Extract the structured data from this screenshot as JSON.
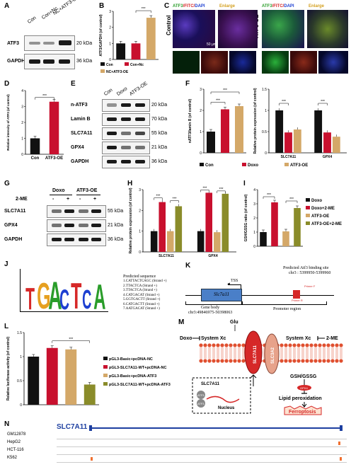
{
  "panels": {
    "A": {
      "label": "A",
      "lanes": [
        "Con",
        "Con+Nc",
        "NC+ATF3-OE"
      ],
      "rows": [
        {
          "name": "ATF3",
          "kda": "20 kDa"
        },
        {
          "name": "GAPDH",
          "kda": "36 kDa"
        }
      ]
    },
    "B": {
      "label": "B"
    },
    "C": {
      "label": "C",
      "row_labels": [
        "Control",
        "ATF3-OE"
      ],
      "col_headers": [
        {
          "a": "ATF3",
          "b": "/FITC/",
          "c": "DAPI"
        },
        {
          "e": "Enlarge"
        },
        {
          "a": "ATF3",
          "b": "/FITC/",
          "c": "DAPI"
        },
        {
          "e": "Enlarge"
        }
      ],
      "scale": "50 μm"
    },
    "D": {
      "label": "D"
    },
    "E": {
      "label": "E",
      "lanes": [
        "Con",
        "Doxo",
        "ATF3-OE"
      ],
      "rows": [
        {
          "name": "n-ATF3",
          "kda": "20 kDa"
        },
        {
          "name": "Lamin B",
          "kda": "70 kDa"
        },
        {
          "name": "SLC7A11",
          "kda": "55 kDa"
        },
        {
          "name": "GPX4",
          "kda": "21 kDa"
        },
        {
          "name": "GAPDH",
          "kda": "36 kDa"
        }
      ]
    },
    "F": {
      "label": "F"
    },
    "G": {
      "label": "G",
      "groups": [
        "Doxo",
        "ATF3-OE"
      ],
      "treat_label": "2-ME",
      "signs": [
        "-",
        "+",
        "-",
        "+"
      ],
      "rows": [
        {
          "name": "SLC7A11",
          "kda": "55 kDa"
        },
        {
          "name": "GPX4",
          "kda": "21 kDa"
        },
        {
          "name": "GAPDH",
          "kda": "36 kDa"
        }
      ]
    },
    "H": {
      "label": "H"
    },
    "I": {
      "label": "I"
    },
    "J": {
      "label": "J",
      "logo": "TGACTCA",
      "pred_title": "Predicted sequence",
      "sequences": [
        "1.CATTACTCAGC (Strand +)",
        "2.TTACTCA (Strand +)",
        "3.TTACTCA (Strand +)",
        "4.CATGACAT (Strand +)",
        "5.GGTGACTT (Strand +)",
        "6.CATGACTT (Strand +)",
        "7.AATGACAT (Strand +)"
      ]
    },
    "K": {
      "label": "K",
      "gene": "Slc7a11",
      "tss": "TSS",
      "site_title": "Predicted Atf3 binding site",
      "site_coords": "chr3 : 5399950-5399960",
      "primer_f": "Primer F",
      "primer_r": "Primer R",
      "body_label": "Gene body",
      "body_coords": "chr3:49846975-50398063",
      "promoter": "Promoter  region"
    },
    "L": {
      "label": "L"
    },
    "M": {
      "label": "M",
      "glu": "Glu",
      "doxo": "Doxo",
      "me": "2-ME",
      "sysxc": "System Xc",
      "slc3a2": "SLC3A2",
      "slc7a11": "SLC7A11",
      "gsh": "GSH/GSSG",
      "gpx4": "GPX4",
      "lipid": "Lipid peroxidation",
      "ferro": "Ferroptosis",
      "nucleus": "Nucleus",
      "atf3": "ATF3",
      "gene": "SLC7A11"
    },
    "N": {
      "label": "N",
      "gene": "SLC7A11",
      "tracks": [
        "GM12878",
        "HepG2",
        "HCT-116",
        "K562"
      ]
    }
  },
  "chart_data": [
    {
      "type": "bar",
      "id": "B",
      "ylabel": "ATF3/GAPDH (of control)",
      "ylim": [
        0,
        3
      ],
      "yticks": [
        0,
        1,
        2,
        3
      ],
      "categories": [
        "Con",
        "Con+Nc",
        "NC+ATF3-OE"
      ],
      "values": [
        1.0,
        1.0,
        2.6
      ],
      "colors": [
        "#111111",
        "#c8102e",
        "#d4a868"
      ],
      "sig": "***",
      "legend": [
        "Con",
        "Con+Nc",
        "NC+ATF3-OE"
      ]
    },
    {
      "type": "bar",
      "id": "D",
      "ylabel": "Relative intensity of ATF3 (of control)",
      "ylim": [
        0,
        4
      ],
      "yticks": [
        0,
        1,
        2,
        3,
        4
      ],
      "categories": [
        "Con",
        "ATF3-OE"
      ],
      "values": [
        1.0,
        3.3
      ],
      "colors": [
        "#111111",
        "#c8102e"
      ],
      "sig": "***"
    },
    {
      "type": "bar",
      "id": "F1",
      "ylabel": "nATF3/lamin B (of control)",
      "ylim": [
        0,
        3
      ],
      "yticks": [
        0,
        1,
        2,
        3
      ],
      "categories": [
        "Con",
        "Doxo",
        "ATF3-OE"
      ],
      "values": [
        1.0,
        2.05,
        2.2
      ],
      "colors": [
        "#111111",
        "#c8102e",
        "#d4a868"
      ],
      "sig": [
        "***",
        "***"
      ]
    },
    {
      "type": "bar",
      "id": "F2",
      "ylabel": "Relative protein expression (of control)",
      "ylim": [
        0,
        1.5
      ],
      "yticks": [
        0,
        0.5,
        1.0,
        1.5
      ],
      "categories": [
        "SLC7A11",
        "GPX4"
      ],
      "series": [
        {
          "name": "Con",
          "values": [
            1.0,
            1.0
          ]
        },
        {
          "name": "Doxo",
          "values": [
            0.48,
            0.48
          ]
        },
        {
          "name": "ATF3-OE",
          "values": [
            0.55,
            0.38
          ]
        }
      ],
      "colors": [
        "#111111",
        "#c8102e",
        "#d4a868"
      ],
      "sig": [
        "***",
        "***",
        "***",
        "***"
      ],
      "legend": [
        "Con",
        "Doxo",
        "ATF3-OE"
      ]
    },
    {
      "type": "bar",
      "id": "H",
      "ylabel": "Relative protein expression (of control)",
      "ylim": [
        0,
        3
      ],
      "yticks": [
        0,
        1,
        2,
        3
      ],
      "categories": [
        "SLC7A11",
        "GPX4"
      ],
      "series": [
        {
          "name": "Doxo",
          "values": [
            1.0,
            1.0
          ]
        },
        {
          "name": "Doxo+2-ME",
          "values": [
            2.4,
            2.85
          ]
        },
        {
          "name": "ATF3-OE",
          "values": [
            1.0,
            0.95
          ]
        },
        {
          "name": "ATF3-OE+2-ME",
          "values": [
            2.2,
            2.8
          ]
        }
      ],
      "colors": [
        "#111111",
        "#c8102e",
        "#d4a868",
        "#8a8c2a"
      ],
      "sig": [
        "***",
        "***",
        "***",
        "***"
      ]
    },
    {
      "type": "bar",
      "id": "I",
      "ylabel": "GSH/GSSG ratio (of control)",
      "ylim": [
        0,
        4
      ],
      "yticks": [
        0,
        1,
        2,
        3,
        4
      ],
      "categories": [
        "Doxo",
        "Doxo+2-ME",
        "ATF3-OE",
        "ATF3-OE+2-ME"
      ],
      "values": [
        1.0,
        3.1,
        1.05,
        2.7
      ],
      "colors": [
        "#111111",
        "#c8102e",
        "#d4a868",
        "#8a8c2a"
      ],
      "sig": [
        "***",
        "***"
      ],
      "legend": [
        "Doxo",
        "Doxo+2-ME",
        "ATF3-OE",
        "ATF3-OE+2-ME"
      ]
    },
    {
      "type": "bar",
      "id": "L",
      "ylabel": "Relative luciferase activity (of control)",
      "ylim": [
        0,
        1.5
      ],
      "yticks": [
        0,
        0.5,
        1.0,
        1.5
      ],
      "categories": [
        "pGL3-Basic+pcDNA-NC",
        "pGL3-SLC7A11-WT+pcDNA-NC",
        "pGL3-Basic+pcDNA-ATF3",
        "pGL3-SLC7A11-WT+pcDNA-ATF3"
      ],
      "values": [
        1.0,
        1.18,
        1.15,
        0.42
      ],
      "colors": [
        "#111111",
        "#c8102e",
        "#d4a868",
        "#8a8c2a"
      ],
      "sig": "***",
      "legend": [
        "pGL3-Basic+pcDNA-NC",
        "pGL3-SLC7A11-WT+pcDNA-NC",
        "pGL3-Basic+pcDNA-ATF3",
        "pGL3-SLC7A11-WT+pcDNA-ATF3"
      ]
    }
  ]
}
